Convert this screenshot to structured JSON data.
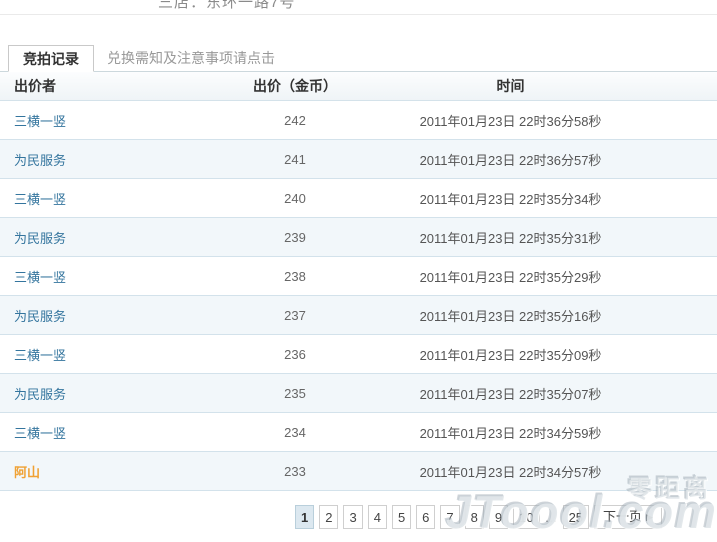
{
  "page": {
    "top_clipped_text": "三店：东环一路7号"
  },
  "tabs": {
    "bid_records": "竞拍记录",
    "exchange_notice": "兑换需知及注意事项请点击"
  },
  "table": {
    "columns": [
      "出价者",
      "出价（金币）",
      "时间"
    ],
    "rows": [
      {
        "bidder": "三横一竖",
        "bid": "242",
        "time": "2011年01月23日 22时36分58秒"
      },
      {
        "bidder": "为民服务",
        "bid": "241",
        "time": "2011年01月23日 22时36分57秒"
      },
      {
        "bidder": "三横一竖",
        "bid": "240",
        "time": "2011年01月23日 22时35分34秒"
      },
      {
        "bidder": "为民服务",
        "bid": "239",
        "time": "2011年01月23日 22时35分31秒"
      },
      {
        "bidder": "三横一竖",
        "bid": "238",
        "time": "2011年01月23日 22时35分29秒"
      },
      {
        "bidder": "为民服务",
        "bid": "237",
        "time": "2011年01月23日 22时35分16秒"
      },
      {
        "bidder": "三横一竖",
        "bid": "236",
        "time": "2011年01月23日 22时35分09秒"
      },
      {
        "bidder": "为民服务",
        "bid": "235",
        "time": "2011年01月23日 22时35分07秒"
      },
      {
        "bidder": "三横一竖",
        "bid": "234",
        "time": "2011年01月23日 22时34分59秒"
      },
      {
        "bidder": "阿山",
        "bid": "233",
        "time": "2011年01月23日 22时34分57秒",
        "highlight": true
      }
    ]
  },
  "pagination": {
    "pages": [
      "1",
      "2",
      "3",
      "4",
      "5",
      "6",
      "7",
      "8",
      "9",
      "10"
    ],
    "active_page": "1",
    "ellipsis": "…",
    "last_page": "25",
    "next_label": "下一页",
    "next_arrow": "▶"
  },
  "watermark": {
    "cn_text": "零距离",
    "site_text": "JToool.com"
  },
  "colors": {
    "bidder_link": "#34759e",
    "bidder_highlight": "#f0a133",
    "row_alt_bg": "#f2f7fa",
    "row_border": "#d3e2eb",
    "active_page_bg": "#dce8f0",
    "tab_active_text": "#333333",
    "tab_inactive_text": "#999999"
  }
}
